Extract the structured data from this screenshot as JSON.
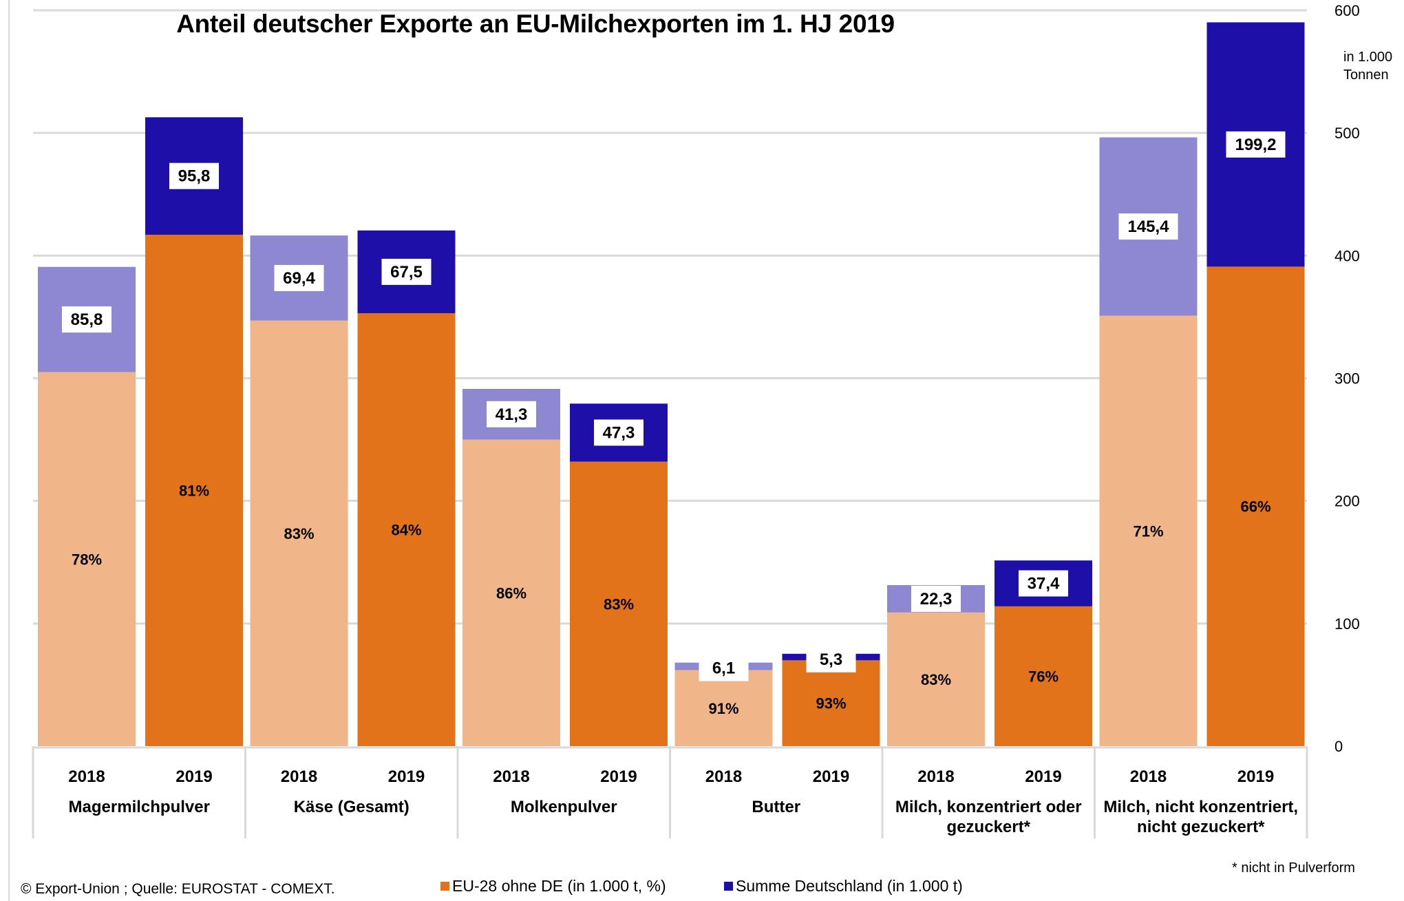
{
  "chart_data": {
    "type": "bar",
    "stacked": true,
    "title": "Anteil deutscher Exporte an EU-Milchexporten im 1. HJ 2019",
    "ylabel": "in 1.000 Tonnen",
    "xlabel": "",
    "ylim": [
      0,
      600
    ],
    "yticks": [
      0,
      100,
      200,
      300,
      400,
      500,
      600
    ],
    "ytick_labels": [
      "0",
      "100",
      "200",
      "300",
      "400",
      "500",
      "600"
    ],
    "y_axis_side": "right",
    "grid": true,
    "groups": [
      {
        "name": "Magermilchpulver",
        "label_lines": [
          "Magermilchpulver"
        ]
      },
      {
        "name": "Käse (Gesamt)",
        "label_lines": [
          "Käse (Gesamt)"
        ]
      },
      {
        "name": "Molkenpulver",
        "label_lines": [
          "Molkenpulver"
        ]
      },
      {
        "name": "Butter",
        "label_lines": [
          "Butter"
        ]
      },
      {
        "name": "Milch, konzentriert oder gezuckert*",
        "label_lines": [
          "Milch, konzentriert oder",
          "gezuckert*"
        ]
      },
      {
        "name": "Milch, nicht konzentriert, nicht gezuckert*",
        "label_lines": [
          "Milch, nicht konzentriert,",
          "nicht gezuckert*"
        ]
      }
    ],
    "years": [
      "2018",
      "2019"
    ],
    "series": [
      {
        "name": "EU-28 ohne DE (in 1.000 t, %)",
        "legend_color": "#E3731B",
        "colors": {
          "2018": "#F0B68A",
          "2019": "#E3731B"
        },
        "values": {
          "2018": [
            305,
            347,
            250,
            62,
            109,
            351
          ],
          "2019": [
            417,
            353,
            232,
            70,
            114,
            391
          ]
        },
        "labels": {
          "2018": [
            "78%",
            "83%",
            "86%",
            "91%",
            "83%",
            "71%"
          ],
          "2019": [
            "81%",
            "84%",
            "83%",
            "93%",
            "76%",
            "66%"
          ]
        }
      },
      {
        "name": "Summe Deutschland (in 1.000 t)",
        "legend_color": "#1E0FA8",
        "colors": {
          "2018": "#8E87D1",
          "2019": "#1E0FA8"
        },
        "values": {
          "2018": [
            85.8,
            69.4,
            41.3,
            6.1,
            22.3,
            145.4
          ],
          "2019": [
            95.8,
            67.5,
            47.3,
            5.3,
            37.4,
            199.2
          ]
        },
        "labels": {
          "2018": [
            "85,8",
            "69,4",
            "41,3",
            "6,1",
            "22,3",
            "145,4"
          ],
          "2019": [
            "95,8",
            "67,5",
            "47,3",
            "5,3",
            "37,4",
            "199,2"
          ]
        }
      }
    ],
    "legend": [
      "EU-28 ohne DE (in 1.000 t, %)",
      "Summe Deutschland (in 1.000 t)"
    ],
    "legend_position": "bottom"
  },
  "header": {
    "title": "Anteil deutscher Exporte an EU-Milchexporten im 1. HJ 2019",
    "unit_line1": "in 1.000",
    "unit_line2": "Tonnen"
  },
  "footer": {
    "source": "© Export-Union ; Quelle: EUROSTAT - COMEXT.",
    "note": "* nicht in Pulverform",
    "legend_eu": "EU-28 ohne DE (in 1.000 t, %)",
    "legend_de": "Summe Deutschland (in 1.000 t)"
  }
}
